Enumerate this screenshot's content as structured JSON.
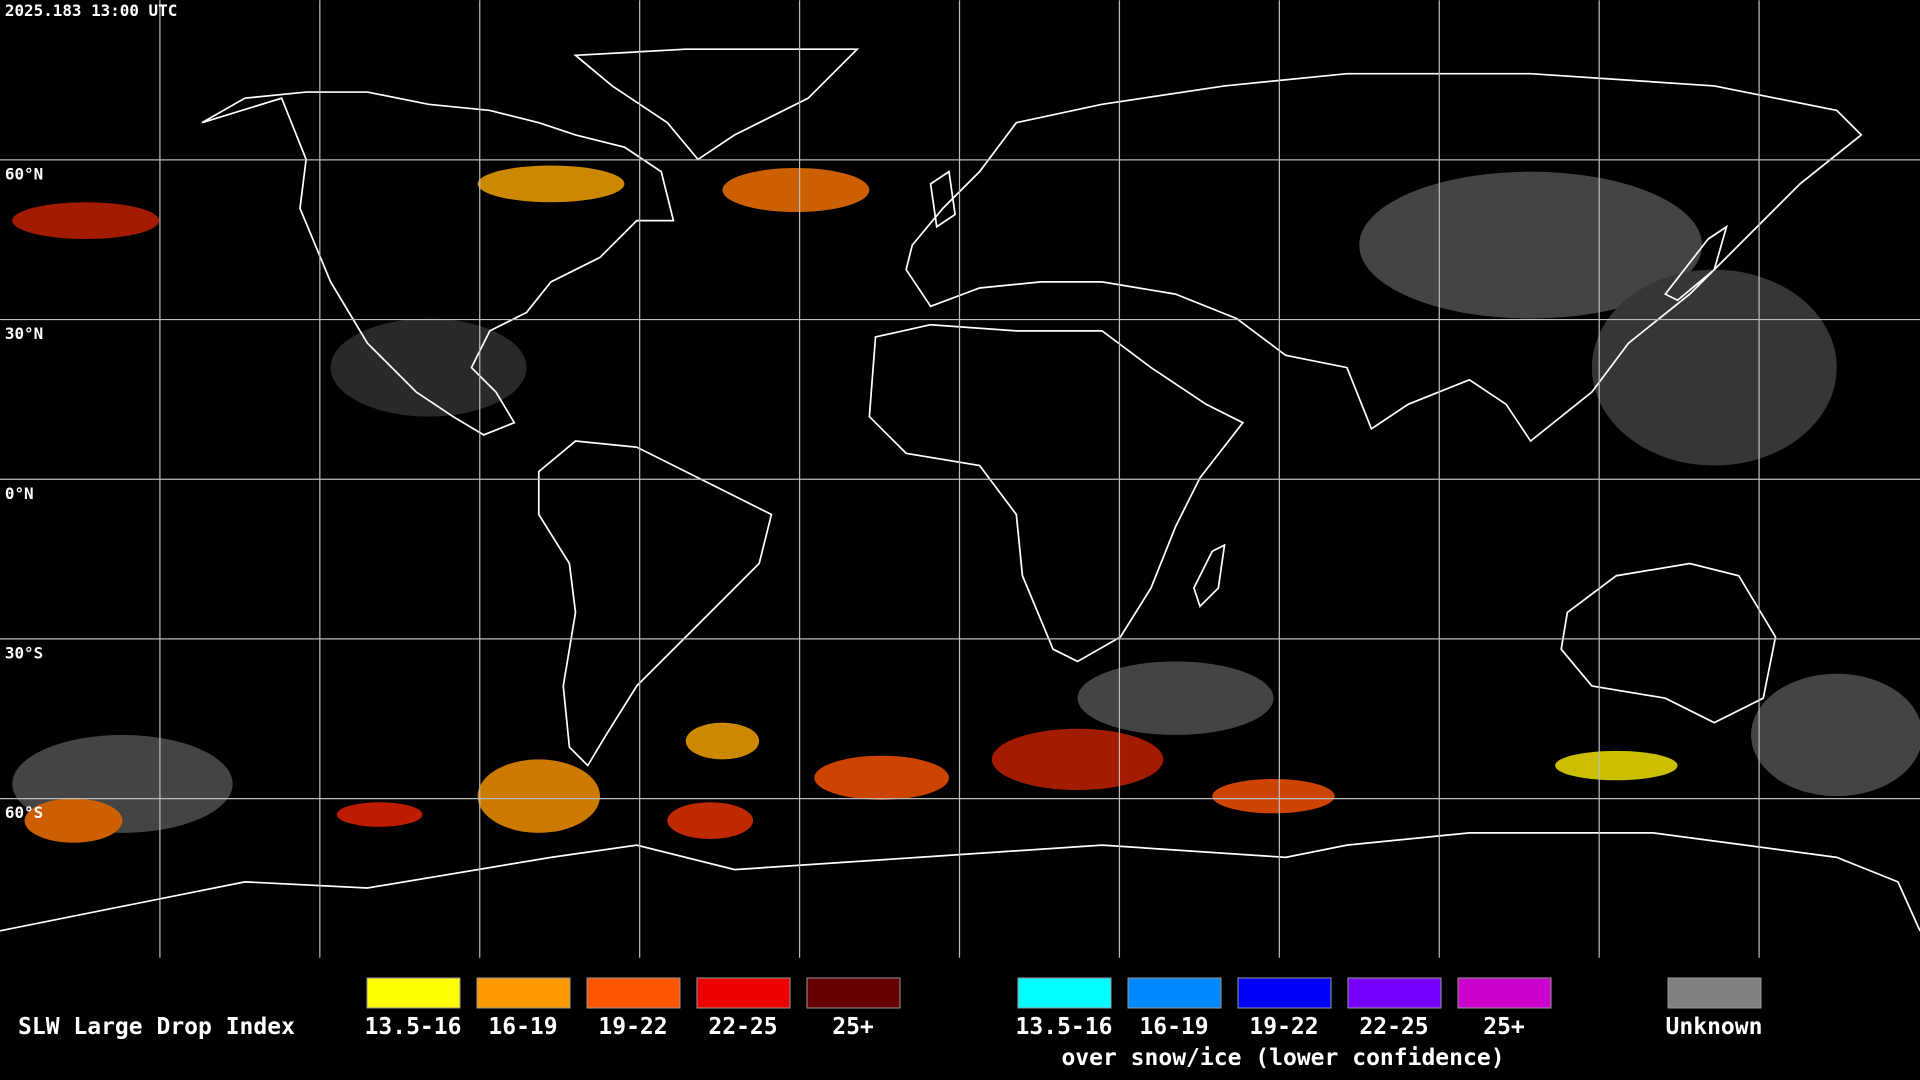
{
  "header": {
    "timestamp": "2025.183 13:00 UTC"
  },
  "grid": {
    "lat_labels": [
      "60°N",
      "30°N",
      "0°N",
      "30°S",
      "60°S"
    ]
  },
  "legend": {
    "title": "SLW Large Drop Index",
    "groups": [
      {
        "items": [
          {
            "label": "13.5-16",
            "color": "#ffff00"
          },
          {
            "label": "16-19",
            "color": "#ff9900"
          },
          {
            "label": "19-22",
            "color": "#ff5500"
          },
          {
            "label": "22-25",
            "color": "#ee0000"
          },
          {
            "label": "25+",
            "color": "#660000"
          }
        ]
      },
      {
        "items": [
          {
            "label": "13.5-16",
            "color": "#00ffff"
          },
          {
            "label": "16-19",
            "color": "#0088ff"
          },
          {
            "label": "19-22",
            "color": "#0000ff"
          },
          {
            "label": "22-25",
            "color": "#7700ff"
          },
          {
            "label": "25+",
            "color": "#cc00cc"
          }
        ],
        "caption": "over snow/ice (lower confidence)"
      }
    ],
    "unknown": {
      "label": "Unknown",
      "color": "#808080"
    }
  }
}
